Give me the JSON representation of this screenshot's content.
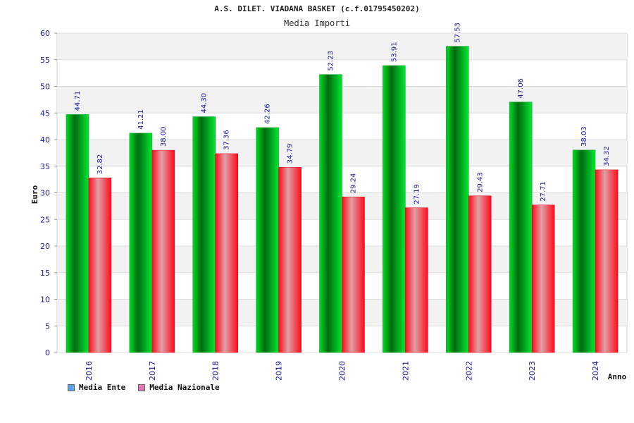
{
  "chart_data": {
    "type": "bar",
    "title": "A.S. DILET. VIADANA BASKET (c.f.01795450202)",
    "subtitle": "Media Importi",
    "xlabel": "Anno",
    "ylabel": "Euro",
    "ylim": [
      0,
      60
    ],
    "yticks": [
      0,
      5,
      10,
      15,
      20,
      25,
      30,
      35,
      40,
      45,
      50,
      55,
      60
    ],
    "categories": [
      "2016",
      "2017",
      "2018",
      "2019",
      "2020",
      "2021",
      "2022",
      "2023",
      "2024"
    ],
    "series": [
      {
        "name": "Media Ente",
        "values": [
          44.71,
          41.21,
          44.3,
          42.26,
          52.23,
          53.91,
          57.53,
          47.06,
          38.03
        ],
        "labels": [
          "44.71",
          "41.21",
          "44.30",
          "42.26",
          "52.23",
          "53.91",
          "57.53",
          "47.06",
          "38.03"
        ],
        "color": "#00c020",
        "legend_color": "#5aa0e6"
      },
      {
        "name": "Media Nazionale",
        "values": [
          32.82,
          38.0,
          37.36,
          34.79,
          29.24,
          27.19,
          29.43,
          27.71,
          34.32
        ],
        "labels": [
          "32.82",
          "38.00",
          "37.36",
          "34.79",
          "29.24",
          "27.19",
          "29.43",
          "27.71",
          "34.32"
        ],
        "color": "#f01020",
        "legend_color": "#e07ab0"
      }
    ],
    "grid": true,
    "legend_position": "bottom-left"
  }
}
